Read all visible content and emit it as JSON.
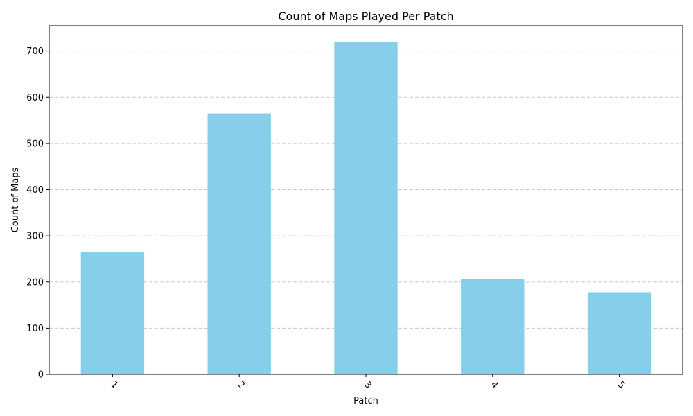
{
  "chart_data": {
    "type": "bar",
    "title": "Count of Maps Played Per Patch",
    "xlabel": "Patch",
    "ylabel": "Count of Maps",
    "categories": [
      "1",
      "2",
      "3",
      "4",
      "5"
    ],
    "values": [
      265,
      565,
      720,
      207,
      178
    ],
    "ylim": [
      0,
      755
    ],
    "yticks": [
      0,
      100,
      200,
      300,
      400,
      500,
      600,
      700
    ],
    "grid": "y-dashed",
    "bar_color": "#87CEEB",
    "xtick_rotation_deg": 45
  }
}
